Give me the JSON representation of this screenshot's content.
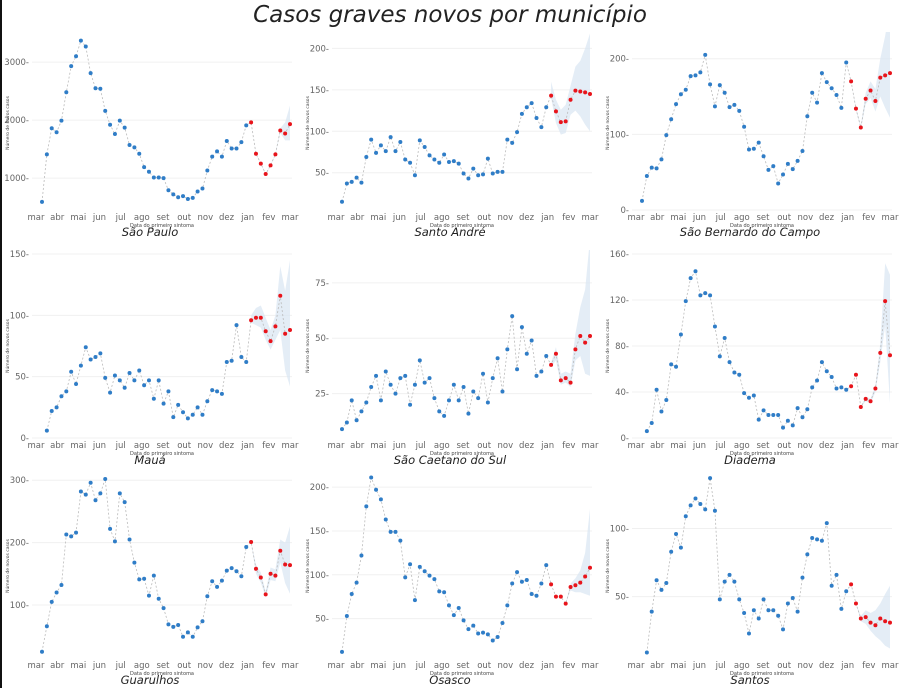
{
  "page": {
    "title": "Casos graves novos por município",
    "xlabel": "Data do primeiro sintoma",
    "ylabel": "Número de novos casos",
    "month_labels": [
      "mar",
      "abr",
      "mai",
      "jun",
      "jul",
      "ago",
      "set",
      "out",
      "nov",
      "dez",
      "jan",
      "fev",
      "mar"
    ]
  },
  "colors": {
    "observed": "#2f7dc7",
    "forecast": "#e8141b",
    "band": "#dbe7f3",
    "line": "#bbbbbb",
    "grid": "#f0f0f0",
    "tick": "#666666"
  },
  "chart_data": [
    {
      "type": "scatter",
      "title": "São Paulo",
      "xlabel": "Data do primeiro sintoma",
      "ylabel": "Número de novos casos",
      "yticks": [
        1000,
        2000,
        3000
      ],
      "ylim": [
        450,
        3450
      ],
      "observed": [
        590,
        1410,
        1860,
        1790,
        1990,
        2480,
        2930,
        3100,
        3370,
        3270,
        2810,
        2550,
        2540,
        2160,
        1920,
        1760,
        1990,
        1870,
        1570,
        1530,
        1420,
        1190,
        1110,
        1010,
        1010,
        1000,
        790,
        720,
        670,
        690,
        640,
        660,
        770,
        820,
        1130,
        1370,
        1460,
        1370,
        1640,
        1510,
        1510,
        1620,
        1910
      ],
      "forecast": [
        1960,
        1420,
        1250,
        1070,
        1220,
        1410,
        1820,
        1770,
        1930
      ],
      "band_low": [
        1960,
        1410,
        1240,
        1060,
        1210,
        1400,
        1780,
        1650,
        1650
      ],
      "band_high": [
        1960,
        1430,
        1260,
        1080,
        1230,
        1420,
        1860,
        1960,
        2250
      ]
    },
    {
      "type": "scatter",
      "title": "Santo André",
      "xlabel": "Data do primeiro sintoma",
      "ylabel": "Número de novos casos",
      "yticks": [
        50,
        100,
        150,
        200
      ],
      "ylim": [
        5,
        215
      ],
      "observed": [
        15,
        37,
        39,
        44,
        38,
        69,
        90,
        74,
        83,
        76,
        93,
        76,
        87,
        66,
        62,
        47,
        89,
        81,
        71,
        66,
        62,
        72,
        63,
        64,
        61,
        49,
        43,
        55,
        47,
        48,
        67,
        49,
        51,
        51,
        90,
        86,
        99,
        121,
        129,
        134,
        116,
        105,
        129
      ],
      "forecast": [
        143,
        124,
        111,
        112,
        138,
        149,
        148,
        147,
        145
      ],
      "band_low": [
        140,
        110,
        96,
        98,
        120,
        125,
        118,
        108,
        100
      ],
      "band_high": [
        160,
        138,
        126,
        132,
        155,
        178,
        185,
        200,
        218
      ]
    },
    {
      "type": "scatter",
      "title": "São Bernardo do Campo",
      "xlabel": "Data do primeiro sintoma",
      "ylabel": "Número de novos casos",
      "yticks": [
        0,
        100,
        200
      ],
      "ylim": [
        0,
        230
      ],
      "observed": [
        12,
        45,
        56,
        55,
        67,
        99,
        120,
        140,
        153,
        159,
        177,
        178,
        182,
        205,
        166,
        137,
        165,
        155,
        136,
        139,
        131,
        110,
        80,
        81,
        89,
        71,
        53,
        58,
        35,
        47,
        61,
        54,
        65,
        78,
        124,
        155,
        142,
        181,
        169,
        161,
        152,
        135,
        195
      ],
      "forecast": [
        170,
        134,
        109,
        147,
        158,
        144,
        175,
        178,
        181
      ],
      "band_low": [
        170,
        132,
        107,
        140,
        148,
        130,
        150,
        135,
        122
      ],
      "band_high": [
        170,
        136,
        111,
        155,
        170,
        160,
        200,
        230,
        270
      ]
    },
    {
      "type": "scatter",
      "title": "Mauá",
      "xlabel": "Data do primeiro sintoma",
      "ylabel": "Número de novos casos",
      "yticks": [
        0,
        50,
        100,
        150
      ],
      "ylim": [
        0,
        150
      ],
      "observed": [
        6,
        22,
        25,
        34,
        38,
        54,
        44,
        59,
        74,
        64,
        66,
        69,
        49,
        37,
        51,
        47,
        41,
        53,
        47,
        55,
        43,
        47,
        32,
        47,
        28,
        38,
        17,
        27,
        21,
        16,
        19,
        25,
        19,
        30,
        39,
        38,
        36,
        62,
        63,
        92,
        66,
        62
      ],
      "forecast": [
        96,
        98,
        98,
        87,
        79,
        91,
        116,
        85,
        88
      ],
      "band_low": [
        94,
        92,
        90,
        80,
        72,
        80,
        88,
        55,
        42
      ],
      "band_high": [
        100,
        106,
        108,
        98,
        88,
        100,
        140,
        120,
        145
      ]
    },
    {
      "type": "scatter",
      "title": "São Caetano do Sul",
      "xlabel": "Data do primeiro sintoma",
      "ylabel": "Número de novos casos",
      "yticks": [
        25,
        50,
        75
      ],
      "ylim": [
        5,
        88
      ],
      "observed": [
        9,
        12,
        22,
        13,
        17,
        21,
        28,
        33,
        22,
        35,
        29,
        25,
        32,
        33,
        20,
        29,
        40,
        30,
        32,
        23,
        17,
        15,
        22,
        29,
        22,
        28,
        16,
        26,
        23,
        34,
        21,
        32,
        41,
        26,
        45,
        60,
        36,
        55,
        43,
        49,
        33,
        35,
        42
      ],
      "forecast": [
        38,
        43,
        31,
        32,
        30,
        45,
        51,
        48,
        51
      ],
      "band_low": [
        37,
        40,
        29,
        30,
        28,
        40,
        42,
        34,
        33
      ],
      "band_high": [
        39,
        46,
        34,
        35,
        34,
        52,
        64,
        72,
        95
      ]
    },
    {
      "type": "scatter",
      "title": "Diadema",
      "xlabel": "Data do primeiro sintoma",
      "ylabel": "Número de novos casos",
      "yticks": [
        0,
        40,
        80,
        120,
        160
      ],
      "ylim": [
        0,
        160
      ],
      "observed": [
        6,
        13,
        42,
        23,
        33,
        64,
        62,
        90,
        119,
        139,
        145,
        124,
        126,
        124,
        97,
        71,
        87,
        66,
        57,
        55,
        39,
        35,
        37,
        16,
        24,
        20,
        20,
        20,
        9,
        15,
        11,
        26,
        18,
        25,
        44,
        50,
        66,
        58,
        53,
        43,
        44,
        42
      ],
      "forecast": [
        45,
        55,
        27,
        34,
        32,
        43,
        74,
        119,
        72
      ],
      "band_low": [
        45,
        55,
        27,
        32,
        30,
        40,
        66,
        98,
        30
      ],
      "band_high": [
        45,
        55,
        27,
        36,
        34,
        46,
        82,
        152,
        142
      ]
    },
    {
      "type": "scatter",
      "title": "Guarulhos",
      "xlabel": "Data do primeiro sintoma",
      "ylabel": "Número de novos casos",
      "yticks": [
        100,
        200,
        300
      ],
      "ylim": [
        15,
        310
      ],
      "observed": [
        25,
        66,
        105,
        120,
        132,
        213,
        210,
        216,
        282,
        277,
        296,
        268,
        279,
        302,
        222,
        202,
        279,
        265,
        205,
        168,
        141,
        142,
        115,
        147,
        110,
        95,
        69,
        65,
        68,
        49,
        56,
        49,
        64,
        74,
        114,
        138,
        129,
        139,
        155,
        159,
        154,
        146,
        193
      ],
      "forecast": [
        201,
        158,
        144,
        117,
        150,
        147,
        187,
        165,
        164
      ],
      "band_low": [
        201,
        150,
        136,
        112,
        140,
        138,
        168,
        135,
        118
      ],
      "band_high": [
        201,
        165,
        152,
        122,
        160,
        157,
        205,
        200,
        226
      ]
    },
    {
      "type": "scatter",
      "title": "Osasco",
      "xlabel": "Data do primeiro sintoma",
      "ylabel": "Número de novos casos",
      "yticks": [
        50,
        100,
        150,
        200
      ],
      "ylim": [
        5,
        215
      ],
      "observed": [
        12,
        53,
        78,
        91,
        122,
        178,
        211,
        197,
        186,
        163,
        149,
        149,
        139,
        97,
        112,
        71,
        109,
        104,
        99,
        95,
        81,
        80,
        65,
        54,
        62,
        48,
        38,
        42,
        33,
        34,
        32,
        25,
        29,
        45,
        65,
        90,
        103,
        92,
        94,
        78,
        76,
        90,
        111
      ],
      "forecast": [
        89,
        75,
        75,
        67,
        86,
        88,
        91,
        98,
        108
      ],
      "band_low": [
        89,
        75,
        75,
        67,
        82,
        80,
        80,
        78,
        76
      ],
      "band_high": [
        89,
        75,
        75,
        67,
        90,
        96,
        105,
        125,
        175
      ]
    },
    {
      "type": "scatter",
      "title": "Santos",
      "xlabel": "Data do primeiro sintoma",
      "ylabel": "Número de novos casos",
      "yticks": [
        50,
        100
      ],
      "ylim": [
        5,
        140
      ],
      "observed": [
        9,
        39,
        62,
        55,
        60,
        83,
        96,
        86,
        109,
        117,
        122,
        118,
        114,
        137,
        113,
        48,
        61,
        66,
        61,
        48,
        38,
        23,
        40,
        34,
        48,
        40,
        40,
        36,
        26,
        45,
        49,
        39,
        64,
        81,
        93,
        92,
        91,
        104,
        58,
        66,
        41,
        54
      ],
      "forecast": [
        59,
        45,
        34,
        35,
        31,
        29,
        34,
        32,
        31
      ],
      "band_low": [
        59,
        45,
        32,
        30,
        25,
        21,
        18,
        14,
        12
      ],
      "band_high": [
        59,
        45,
        36,
        40,
        38,
        40,
        45,
        52,
        58
      ]
    }
  ]
}
